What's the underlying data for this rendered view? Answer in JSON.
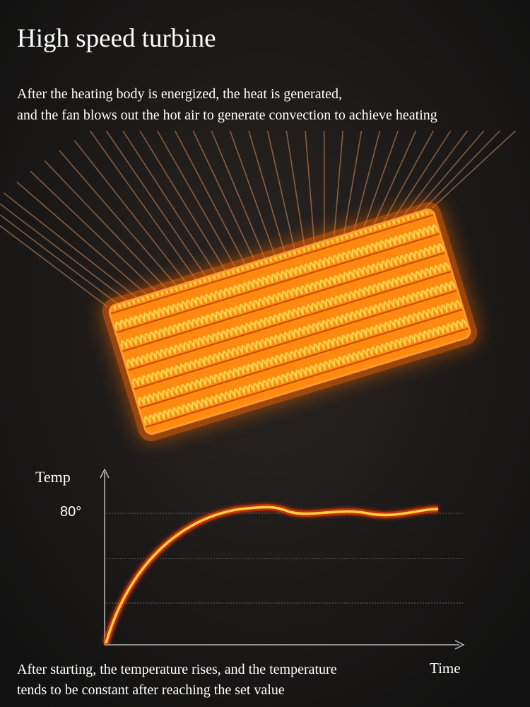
{
  "header": {
    "title": "High speed turbine"
  },
  "description": {
    "lines": [
      "After the heating body is energized, the heat is generated,",
      "and the fan blows out the hot air to generate convection to achieve heating"
    ]
  },
  "graph": {
    "y_label": "Temp",
    "y_tick": "80°",
    "x_label": "Time"
  },
  "caption": {
    "lines": [
      "After starting, the temperature rises, and the temperature",
      "tends to be constant after reaching the set value"
    ]
  }
}
